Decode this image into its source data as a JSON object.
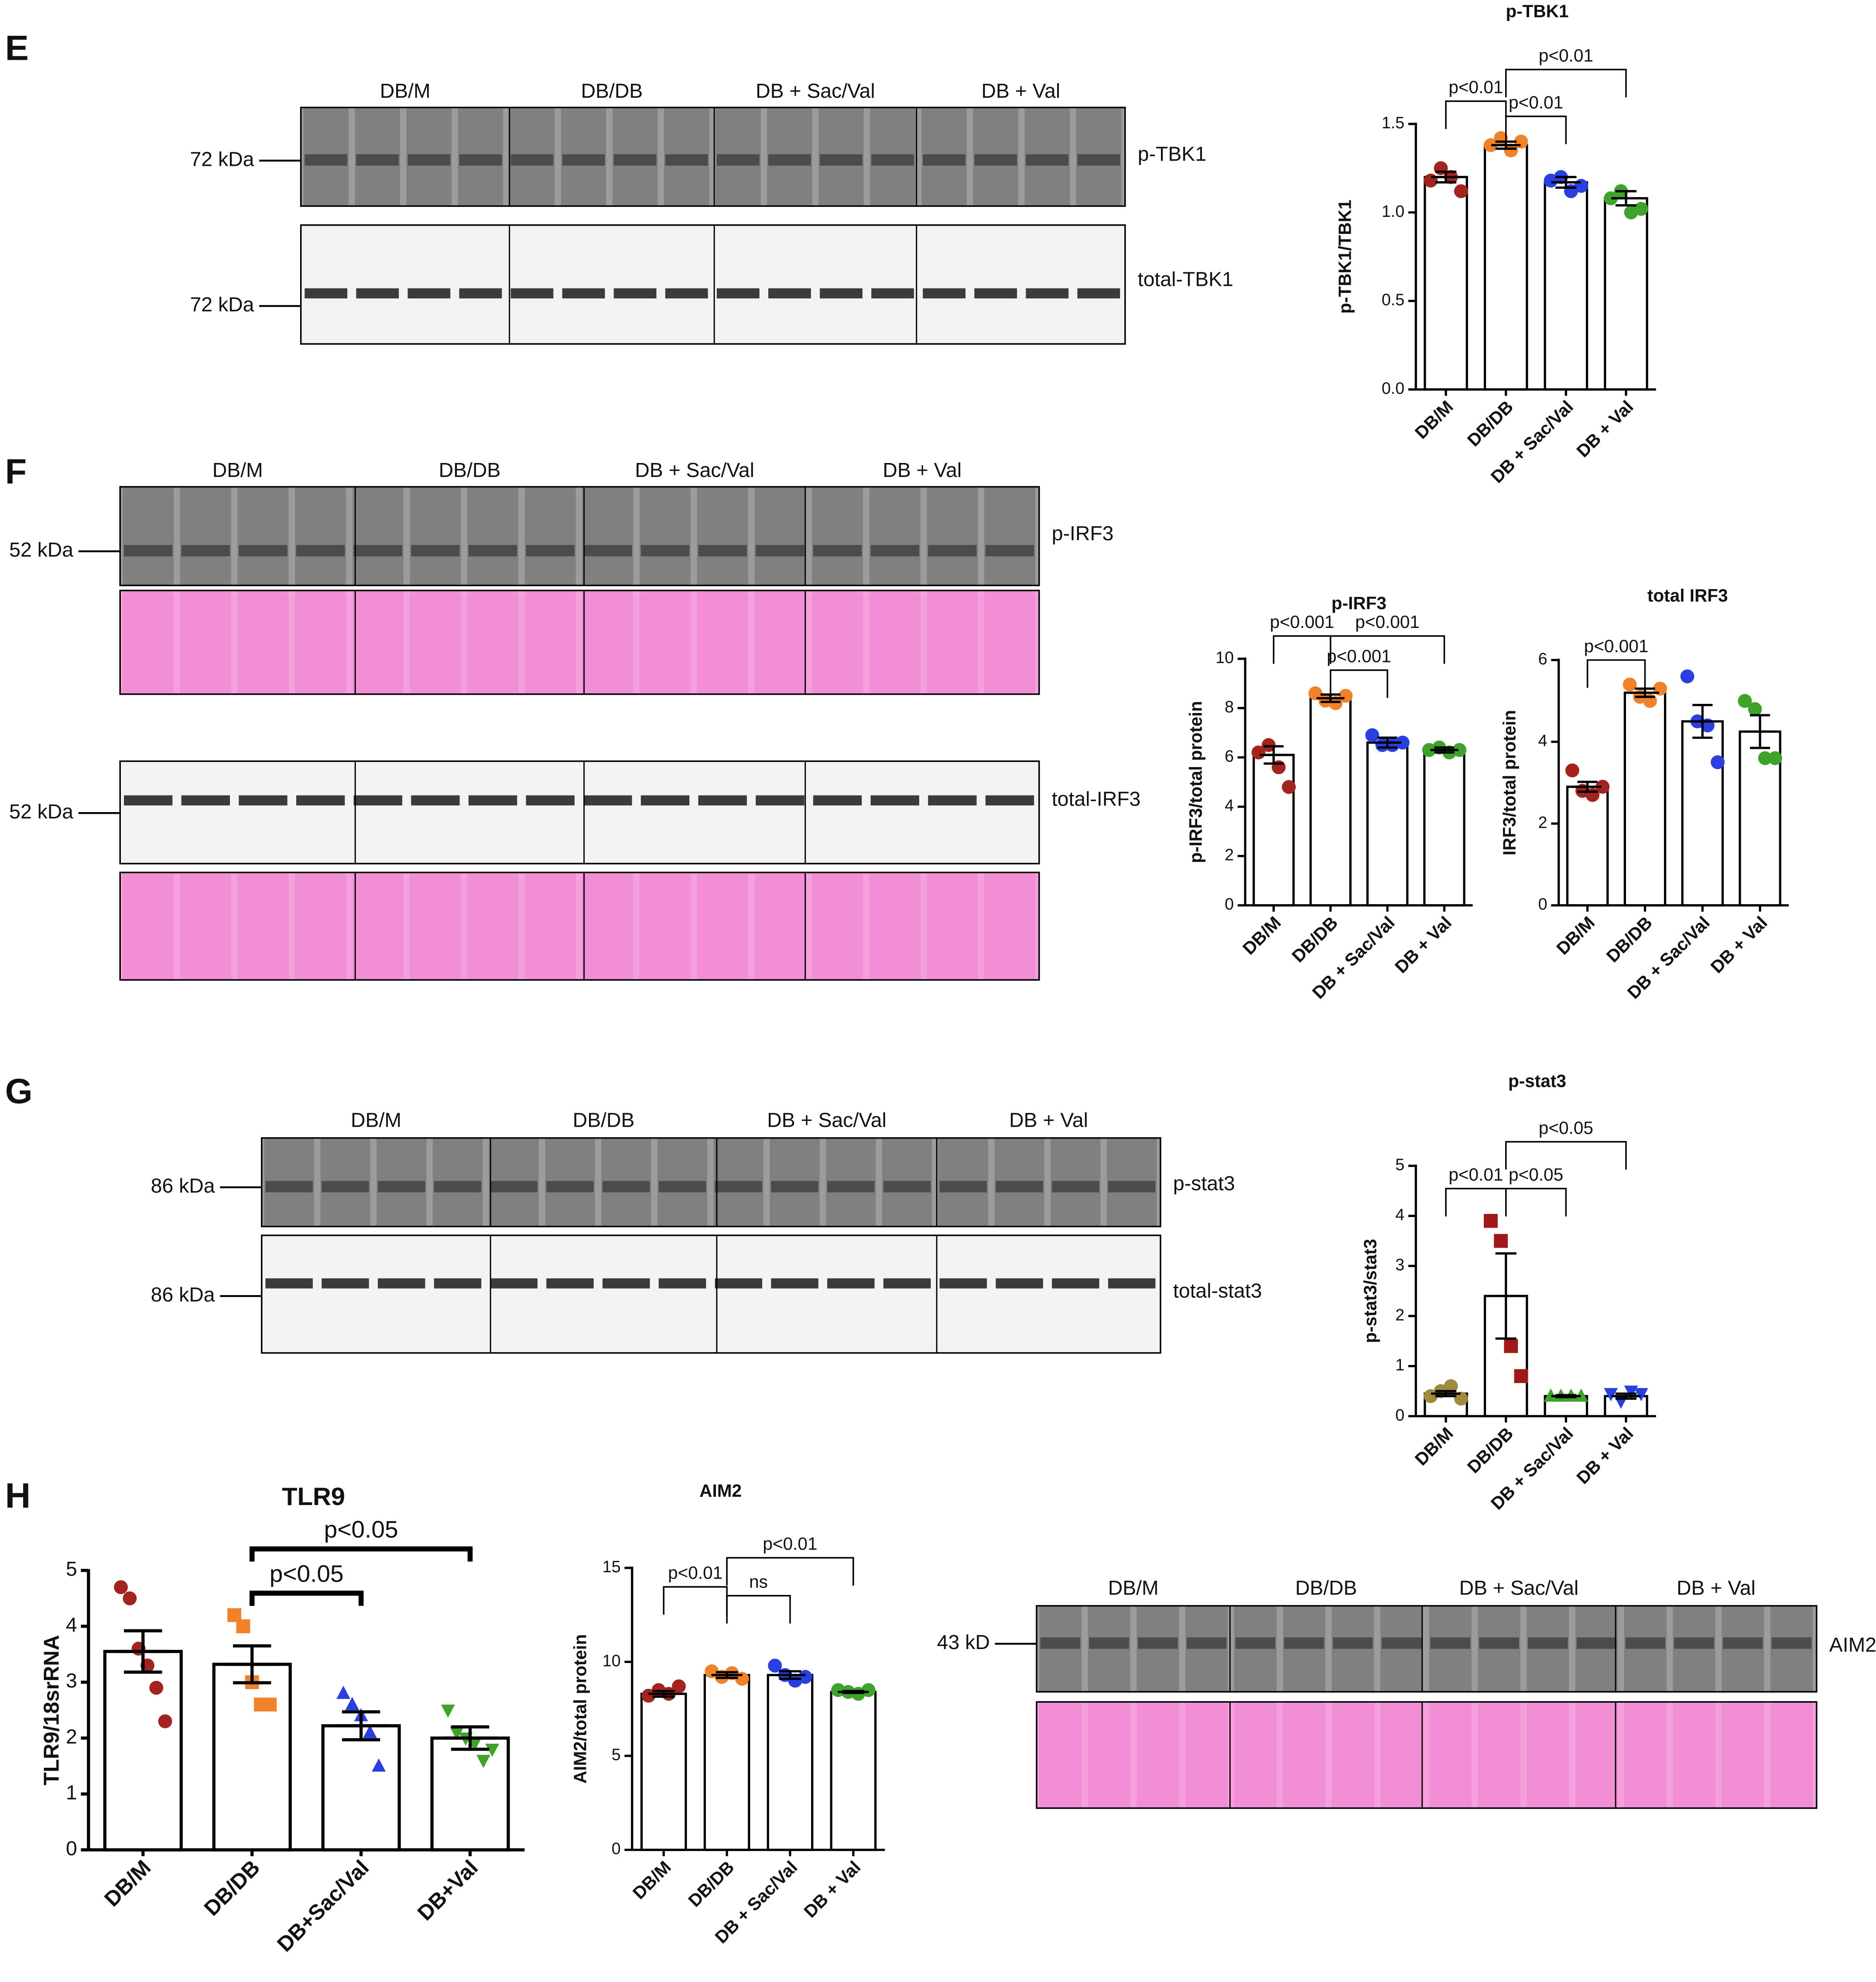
{
  "panel_labels": [
    "E",
    "F",
    "G",
    "H"
  ],
  "blots": [
    {
      "groups": [
        "DB/M",
        "DB/DB",
        "DB + Sac/Val",
        "DB + Val"
      ],
      "membranes": [
        {
          "label": "p-TBK1",
          "marker": "72 kDa"
        },
        {
          "label": "total-TBK1",
          "marker": "72 kDa"
        }
      ]
    },
    {
      "groups": [
        "DB/M",
        "DB/DB",
        "DB + Sac/Val",
        "DB + Val"
      ],
      "membranes": [
        {
          "label": "p-IRF3",
          "marker": "52 kDa"
        },
        {
          "label": "total-IRF3",
          "marker": "52 kDa"
        }
      ]
    },
    {
      "groups": [
        "DB/M",
        "DB/DB",
        "DB + Sac/Val",
        "DB + Val"
      ],
      "membranes": [
        {
          "label": "p-stat3",
          "marker": "86 kDa"
        },
        {
          "label": "total-stat3",
          "marker": "86 kDa"
        }
      ]
    },
    {
      "groups": [
        "DB/M",
        "DB/DB",
        "DB + Sac/Val",
        "DB + Val"
      ],
      "membranes": [
        {
          "label": "AIM2",
          "marker": "43 kD"
        }
      ]
    }
  ],
  "chart_data": [
    {
      "type": "bar",
      "title": "p-TBK1",
      "y_label": "p-TBK1/TBK1",
      "categories": [
        "DB/M",
        "DB/DB",
        "DB + Sac/Val",
        "DB + Val"
      ],
      "values": [
        1.2,
        1.38,
        1.17,
        1.08
      ],
      "errors": [
        0.03,
        0.02,
        0.03,
        0.04
      ],
      "points": [
        [
          1.18,
          1.25,
          1.2,
          1.12
        ],
        [
          1.38,
          1.42,
          1.35,
          1.4
        ],
        [
          1.18,
          1.2,
          1.12,
          1.15
        ],
        [
          1.08,
          1.12,
          1.0,
          1.02
        ]
      ],
      "colors": [
        "#a3231f",
        "#f0822a",
        "#2a3fe0",
        "#3fa22a"
      ],
      "markers": [
        "circle",
        "circle",
        "circle",
        "circle"
      ],
      "ylim": [
        0,
        1.5
      ],
      "yticks": [
        {
          "value": 0,
          "label": "0.0"
        },
        {
          "value": 0.5,
          "label": "0.5"
        },
        {
          "value": 1,
          "label": "1.0"
        },
        {
          "value": 1.5,
          "label": "1.5"
        }
      ],
      "comparisons": [
        {
          "between": [
            "DB/M",
            "DB/DB"
          ],
          "label": "p<0.01"
        },
        {
          "between": [
            "DB/DB",
            "DB + Sac/Val"
          ],
          "label": "p<0.01"
        },
        {
          "between": [
            "DB/DB",
            "DB + Val"
          ],
          "label": "p<0.01"
        }
      ]
    },
    {
      "type": "bar",
      "title": "p-IRF3",
      "y_label": "p-IRF3/total protein",
      "categories": [
        "DB/M",
        "DB/DB",
        "DB + Sac/Val",
        "DB + Val"
      ],
      "values": [
        6.1,
        8.4,
        6.6,
        6.3
      ],
      "errors": [
        0.35,
        0.15,
        0.2,
        0.1
      ],
      "points": [
        [
          6.2,
          6.5,
          5.6,
          4.8
        ],
        [
          8.6,
          8.3,
          8.2,
          8.5
        ],
        [
          6.9,
          6.5,
          6.5,
          6.6
        ],
        [
          6.3,
          6.4,
          6.2,
          6.3
        ]
      ],
      "colors": [
        "#a3231f",
        "#f0822a",
        "#2a3fe0",
        "#3fa22a"
      ],
      "markers": [
        "circle",
        "circle",
        "circle",
        "circle"
      ],
      "ylim": [
        0,
        10
      ],
      "yticks": [
        0,
        2,
        4,
        6,
        8,
        10
      ],
      "comparisons": [
        {
          "between": [
            "DB/M",
            "DB/DB"
          ],
          "label": "p<0.001"
        },
        {
          "between": [
            "DB/DB",
            "DB + Sac/Val"
          ],
          "label": "p<0.001"
        },
        {
          "between": [
            "DB/DB",
            "DB + Val"
          ],
          "label": "p<0.001"
        }
      ]
    },
    {
      "type": "bar",
      "title": "total IRF3",
      "y_label": "IRF3/total protein",
      "categories": [
        "DB/M",
        "DB/DB",
        "DB + Sac/Val",
        "DB + Val"
      ],
      "values": [
        2.9,
        5.2,
        4.5,
        4.25
      ],
      "errors": [
        0.12,
        0.1,
        0.4,
        0.4
      ],
      "points": [
        [
          3.3,
          2.8,
          2.7,
          2.9
        ],
        [
          5.4,
          5.1,
          5.0,
          5.3
        ],
        [
          5.6,
          4.5,
          4.4,
          3.5
        ],
        [
          5.0,
          4.8,
          3.6,
          3.6
        ]
      ],
      "colors": [
        "#a3231f",
        "#f0822a",
        "#2a3fe0",
        "#3fa22a"
      ],
      "markers": [
        "circle",
        "circle",
        "circle",
        "circle"
      ],
      "ylim": [
        0,
        6
      ],
      "yticks": [
        0,
        2,
        4,
        6
      ],
      "comparisons": [
        {
          "between": [
            "DB/M",
            "DB/DB"
          ],
          "label": "p<0.001"
        }
      ]
    },
    {
      "type": "bar",
      "title": "p-stat3",
      "y_label": "p-stat3/stat3",
      "categories": [
        "DB/M",
        "DB/DB",
        "DB + Sac/Val",
        "DB + Val"
      ],
      "values": [
        0.45,
        2.4,
        0.4,
        0.4
      ],
      "errors": [
        0.05,
        0.85,
        0.02,
        0.05
      ],
      "points": [
        [
          0.4,
          0.5,
          0.6,
          0.35
        ],
        [
          3.9,
          3.5,
          1.4,
          0.8
        ],
        [
          0.4,
          0.4,
          0.4,
          0.4
        ],
        [
          0.45,
          0.3,
          0.5,
          0.45
        ]
      ],
      "colors": [
        "#a08a40",
        "#a01818",
        "#3fa22a",
        "#2a3fe0"
      ],
      "markers": [
        "circle",
        "square",
        "triangle",
        "triangle-down"
      ],
      "ylim": [
        0,
        5
      ],
      "yticks": [
        0,
        1,
        2,
        3,
        4,
        5
      ],
      "comparisons": [
        {
          "between": [
            "DB/M",
            "DB/DB"
          ],
          "label": "p<0.01"
        },
        {
          "between": [
            "DB/DB",
            "DB + Sac/Val"
          ],
          "label": "p<0.05"
        },
        {
          "between": [
            "DB/DB",
            "DB + Val"
          ],
          "label": "p<0.05"
        }
      ]
    },
    {
      "type": "bar",
      "title": "TLR9",
      "y_label": "TLR9/18srRNA",
      "categories": [
        "DB/M",
        "DB/DB",
        "DB+Sac/Val",
        "DB+Val"
      ],
      "values": [
        3.55,
        3.32,
        2.22,
        2.0
      ],
      "errors": [
        0.37,
        0.33,
        0.25,
        0.2
      ],
      "points": [
        [
          4.7,
          4.5,
          3.6,
          3.3,
          2.9,
          2.3
        ],
        [
          4.2,
          4.0,
          3.0,
          2.6,
          2.6
        ],
        [
          2.8,
          2.6,
          2.4,
          2.1,
          1.5
        ],
        [
          2.5,
          2.1,
          2.0,
          1.9,
          1.6,
          1.8
        ]
      ],
      "colors": [
        "#a3231f",
        "#f0822a",
        "#2a3fe0",
        "#3fa22a"
      ],
      "markers": [
        "circle",
        "square",
        "triangle",
        "triangle-down"
      ],
      "ylim": [
        0,
        5
      ],
      "yticks": [
        0,
        1,
        2,
        3,
        4,
        5
      ],
      "comparisons": [
        {
          "between": [
            "DB/DB",
            "DB+Sac/Val"
          ],
          "label": "p<0.05"
        },
        {
          "between": [
            "DB/DB",
            "DB+Val"
          ],
          "label": "p<0.05"
        }
      ]
    },
    {
      "type": "bar",
      "title": "AIM2",
      "y_label": "AIM2/total protein",
      "categories": [
        "DB/M",
        "DB/DB",
        "DB + Sac/Val",
        "DB + Val"
      ],
      "values": [
        8.3,
        9.3,
        9.3,
        8.4
      ],
      "errors": [
        0.15,
        0.15,
        0.2,
        0.05
      ],
      "points": [
        [
          8.2,
          8.5,
          8.3,
          8.7
        ],
        [
          9.5,
          9.2,
          9.4,
          9.1
        ],
        [
          9.8,
          9.3,
          9.0,
          9.2
        ],
        [
          8.5,
          8.4,
          8.3,
          8.5
        ]
      ],
      "colors": [
        "#a3231f",
        "#f0822a",
        "#2a3fe0",
        "#3fa22a"
      ],
      "markers": [
        "circle",
        "circle",
        "circle",
        "circle"
      ],
      "ylim": [
        0,
        15
      ],
      "yticks": [
        0,
        5,
        10,
        15
      ],
      "comparisons": [
        {
          "between": [
            "DB/M",
            "DB/DB"
          ],
          "label": "p<0.01"
        },
        {
          "between": [
            "DB/DB",
            "DB + Sac/Val"
          ],
          "label": "ns"
        },
        {
          "between": [
            "DB/DB",
            "DB + Val"
          ],
          "label": "p<0.01"
        }
      ]
    }
  ]
}
